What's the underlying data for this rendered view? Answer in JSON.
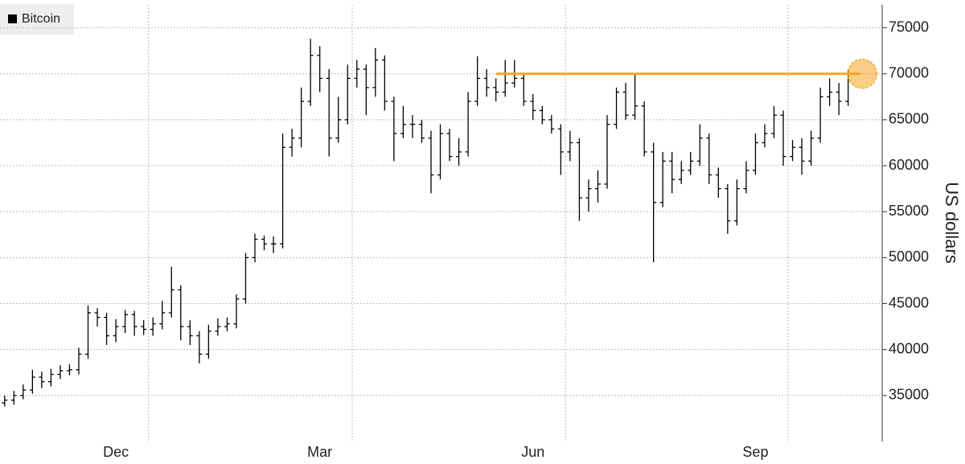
{
  "chart_data": {
    "type": "ohlc",
    "y_axis_label": "US dollars",
    "categories": [
      null,
      null,
      null,
      null,
      null,
      null,
      null,
      null,
      null,
      null,
      null,
      null,
      "Dec",
      null,
      null,
      null,
      null,
      null,
      null,
      null,
      null,
      null,
      null,
      null,
      null,
      null,
      null,
      null,
      null,
      null,
      null,
      null,
      null,
      null,
      "Mar",
      null,
      null,
      null,
      null,
      null,
      null,
      null,
      null,
      null,
      null,
      null,
      null,
      null,
      null,
      null,
      null,
      null,
      null,
      null,
      null,
      null,
      null,
      "Jun",
      null,
      null,
      null,
      null,
      null,
      null,
      null,
      null,
      null,
      null,
      null,
      null,
      null,
      null,
      null,
      null,
      null,
      null,
      null,
      null,
      null,
      null,
      null,
      "Sep",
      null,
      null,
      null,
      null,
      null,
      null,
      null,
      null,
      null,
      null,
      null
    ],
    "series": [
      {
        "name": "Bitcoin",
        "color": "#000000",
        "open": [
          34200,
          34500,
          35000,
          35600,
          37000,
          36500,
          37300,
          37700,
          37800,
          39500,
          44000,
          43500,
          41500,
          42500,
          43800,
          42500,
          42200,
          42800,
          44000,
          46500,
          42500,
          41500,
          39500,
          42000,
          42500,
          42800,
          45500,
          50000,
          52000,
          51500,
          51500,
          62000,
          63000,
          67000,
          72000,
          69500,
          63000,
          65000,
          69500,
          70500,
          68500,
          71500,
          67000,
          63500,
          64500,
          64500,
          63000,
          59000,
          63500,
          61000,
          61500,
          67000,
          69500,
          68500,
          68000,
          69000,
          69500,
          67000,
          66000,
          65000,
          64000,
          61500,
          62500,
          56500,
          57500,
          58000,
          64500,
          68000,
          65500,
          66500,
          61500,
          56000,
          60500,
          58500,
          59500,
          60500,
          63000,
          59000,
          57500,
          54000,
          57500,
          59500,
          62500,
          63500,
          65500,
          61000,
          62000,
          60500,
          63000,
          67500,
          68000,
          67000
        ],
        "high": [
          35000,
          35500,
          36200,
          37800,
          37600,
          37900,
          38300,
          38400,
          40200,
          44800,
          44500,
          44000,
          43300,
          44300,
          44200,
          43200,
          43500,
          45300,
          49000,
          47000,
          43200,
          42000,
          42700,
          43400,
          43500,
          46000,
          50500,
          52600,
          52400,
          52300,
          63500,
          64000,
          68500,
          73800,
          73000,
          70500,
          67500,
          71000,
          71500,
          71000,
          72800,
          72000,
          67500,
          66500,
          65500,
          65000,
          63800,
          64500,
          64000,
          63000,
          68000,
          71900,
          70500,
          69500,
          71500,
          71500,
          70000,
          67800,
          66500,
          65500,
          64500,
          63800,
          63000,
          58500,
          59500,
          65500,
          68500,
          69000,
          70000,
          67000,
          62500,
          61500,
          61500,
          60500,
          61500,
          64500,
          63500,
          59800,
          58000,
          58500,
          60500,
          63500,
          64500,
          66500,
          66000,
          62800,
          63000,
          63800,
          68500,
          69500,
          69000,
          70500
        ],
        "low": [
          33800,
          34000,
          34600,
          35200,
          35800,
          36000,
          36800,
          37200,
          37300,
          39000,
          42500,
          40500,
          40800,
          41800,
          41500,
          41600,
          41500,
          42200,
          43500,
          41000,
          40500,
          38500,
          39000,
          41500,
          42000,
          42300,
          45000,
          49500,
          50800,
          50500,
          51000,
          61000,
          62000,
          66500,
          68000,
          61000,
          62500,
          64500,
          68500,
          65500,
          67500,
          66000,
          60500,
          63000,
          63000,
          62500,
          57000,
          58500,
          60500,
          60000,
          61000,
          66500,
          67500,
          67000,
          67500,
          68500,
          66500,
          65000,
          64500,
          63500,
          59000,
          60500,
          54000,
          55000,
          56000,
          57500,
          64000,
          65000,
          65000,
          61000,
          49500,
          55500,
          57000,
          58000,
          59000,
          60000,
          58000,
          56500,
          52600,
          53500,
          57000,
          59000,
          62000,
          63000,
          60000,
          60500,
          59000,
          60000,
          62500,
          66500,
          65500,
          66500
        ],
        "close": [
          34500,
          35000,
          35600,
          37000,
          36500,
          37300,
          37700,
          37800,
          39500,
          44000,
          43500,
          41500,
          42500,
          43800,
          42500,
          42200,
          42800,
          44000,
          46500,
          42500,
          41500,
          39500,
          42000,
          42500,
          42800,
          45500,
          50000,
          52000,
          51500,
          51500,
          62000,
          63000,
          67000,
          72000,
          69500,
          63000,
          65000,
          69500,
          70500,
          68500,
          71500,
          67000,
          63500,
          64500,
          64500,
          63000,
          59000,
          63500,
          61000,
          61500,
          67000,
          69500,
          68500,
          68000,
          69000,
          69500,
          67000,
          66000,
          65000,
          64000,
          61500,
          62500,
          56500,
          57500,
          58000,
          64500,
          68000,
          65500,
          66500,
          61500,
          56000,
          60500,
          58500,
          59500,
          60500,
          63000,
          59000,
          57500,
          54000,
          57500,
          59500,
          62500,
          63500,
          65500,
          61000,
          62000,
          60500,
          63000,
          67500,
          68000,
          67000,
          70000
        ]
      }
    ],
    "reference_line": {
      "value": 70000,
      "start": 53,
      "color": "#f5a623"
    },
    "ylim": [
      30000,
      77500
    ],
    "yticks": [
      35000,
      40000,
      45000,
      50000,
      55000,
      60000,
      65000,
      70000,
      75000
    ],
    "grid": true
  }
}
